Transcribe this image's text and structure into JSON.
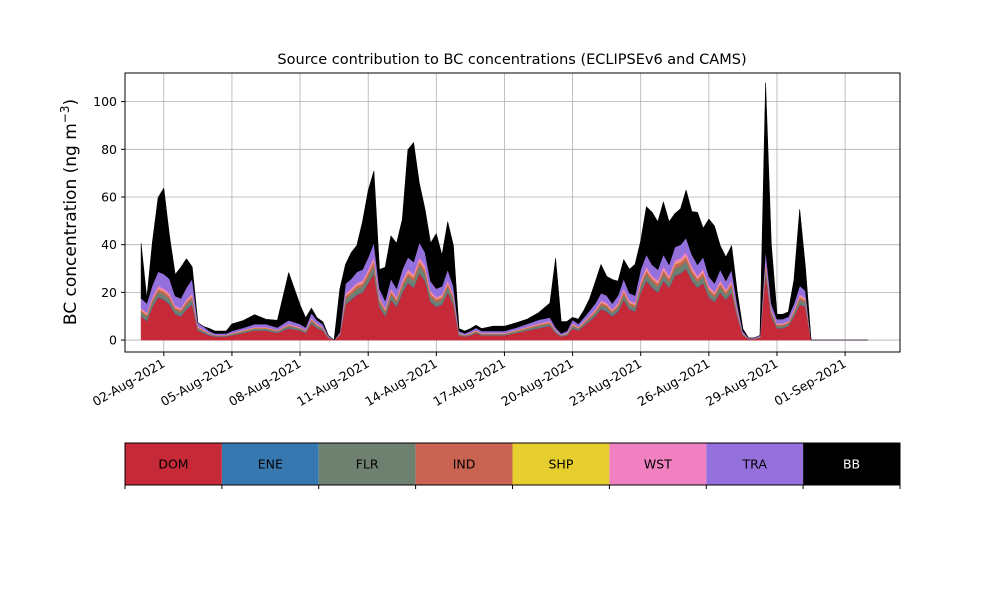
{
  "chart_data": {
    "type": "area",
    "stacked": true,
    "title": "Source contribution to BC concentrations (ECLIPSEv6 and CAMS)",
    "ylabel": "BC concentration (ng m",
    "ylabel_sup": "−3",
    "ylabel_close": ")",
    "xlabel": "",
    "ylim": [
      -5,
      112
    ],
    "xlim": [
      "2021-07-31T07:00",
      "2021-09-03T10:00"
    ],
    "yticks": [
      0,
      20,
      40,
      60,
      80,
      100
    ],
    "xticks": [
      {
        "date": "2021-08-02",
        "label": "02-Aug-2021"
      },
      {
        "date": "2021-08-05",
        "label": "05-Aug-2021"
      },
      {
        "date": "2021-08-08",
        "label": "08-Aug-2021"
      },
      {
        "date": "2021-08-11",
        "label": "11-Aug-2021"
      },
      {
        "date": "2021-08-14",
        "label": "14-Aug-2021"
      },
      {
        "date": "2021-08-17",
        "label": "17-Aug-2021"
      },
      {
        "date": "2021-08-20",
        "label": "20-Aug-2021"
      },
      {
        "date": "2021-08-23",
        "label": "23-Aug-2021"
      },
      {
        "date": "2021-08-26",
        "label": "26-Aug-2021"
      },
      {
        "date": "2021-08-29",
        "label": "29-Aug-2021"
      },
      {
        "date": "2021-09-01",
        "label": "01-Sep-2021"
      }
    ],
    "grid": true,
    "legend_position": "bottom colorbar",
    "x": [
      "2021-08-01T00:00",
      "2021-08-01T06:00",
      "2021-08-01T12:00",
      "2021-08-01T18:00",
      "2021-08-02T00:00",
      "2021-08-02T06:00",
      "2021-08-02T12:00",
      "2021-08-02T18:00",
      "2021-08-03T00:00",
      "2021-08-03T06:00",
      "2021-08-03T12:00",
      "2021-08-03T18:00",
      "2021-08-04T00:00",
      "2021-08-04T06:00",
      "2021-08-04T12:00",
      "2021-08-04T18:00",
      "2021-08-05T00:00",
      "2021-08-05T12:00",
      "2021-08-06T00:00",
      "2021-08-06T12:00",
      "2021-08-07T00:00",
      "2021-08-07T12:00",
      "2021-08-08T00:00",
      "2021-08-08T06:00",
      "2021-08-08T12:00",
      "2021-08-08T18:00",
      "2021-08-09T00:00",
      "2021-08-09T06:00",
      "2021-08-09T12:00",
      "2021-08-09T18:00",
      "2021-08-10T00:00",
      "2021-08-10T06:00",
      "2021-08-10T12:00",
      "2021-08-10T18:00",
      "2021-08-11T00:00",
      "2021-08-11T06:00",
      "2021-08-11T12:00",
      "2021-08-11T18:00",
      "2021-08-12T00:00",
      "2021-08-12T06:00",
      "2021-08-12T12:00",
      "2021-08-12T18:00",
      "2021-08-13T00:00",
      "2021-08-13T06:00",
      "2021-08-13T12:00",
      "2021-08-13T18:00",
      "2021-08-14T00:00",
      "2021-08-14T06:00",
      "2021-08-14T12:00",
      "2021-08-14T18:00",
      "2021-08-15T00:00",
      "2021-08-15T06:00",
      "2021-08-15T12:00",
      "2021-08-15T18:00",
      "2021-08-16T00:00",
      "2021-08-16T12:00",
      "2021-08-17T00:00",
      "2021-08-17T12:00",
      "2021-08-18T00:00",
      "2021-08-18T12:00",
      "2021-08-19T00:00",
      "2021-08-19T06:00",
      "2021-08-19T12:00",
      "2021-08-19T18:00",
      "2021-08-20T00:00",
      "2021-08-20T06:00",
      "2021-08-20T12:00",
      "2021-08-20T18:00",
      "2021-08-21T00:00",
      "2021-08-21T06:00",
      "2021-08-21T12:00",
      "2021-08-21T18:00",
      "2021-08-22T00:00",
      "2021-08-22T06:00",
      "2021-08-22T12:00",
      "2021-08-22T18:00",
      "2021-08-23T00:00",
      "2021-08-23T06:00",
      "2021-08-23T12:00",
      "2021-08-23T18:00",
      "2021-08-24T00:00",
      "2021-08-24T06:00",
      "2021-08-24T12:00",
      "2021-08-24T18:00",
      "2021-08-25T00:00",
      "2021-08-25T06:00",
      "2021-08-25T12:00",
      "2021-08-25T18:00",
      "2021-08-26T00:00",
      "2021-08-26T06:00",
      "2021-08-26T12:00",
      "2021-08-26T18:00",
      "2021-08-27T00:00",
      "2021-08-27T06:00",
      "2021-08-27T12:00",
      "2021-08-27T18:00",
      "2021-08-28T00:00",
      "2021-08-28T06:00",
      "2021-08-28T12:00",
      "2021-08-28T18:00",
      "2021-08-29T00:00",
      "2021-08-29T06:00",
      "2021-08-29T12:00",
      "2021-08-29T18:00",
      "2021-08-30T00:00",
      "2021-08-30T06:00",
      "2021-08-30T12:00",
      "2021-08-30T18:00",
      "2021-08-31T00:00",
      "2021-08-31T06:00",
      "2021-08-31T12:00",
      "2021-08-31T18:00",
      "2021-09-01T00:00",
      "2021-09-01T06:00",
      "2021-09-01T12:00",
      "2021-09-01T18:00",
      "2021-09-02T00:00"
    ],
    "series": [
      {
        "name": "DOM",
        "color": "#c62a39",
        "values": [
          10,
          8,
          14,
          18,
          17,
          15,
          11,
          10,
          13,
          15,
          4,
          3,
          2,
          1.5,
          1.5,
          1.5,
          2,
          3,
          4,
          4,
          3,
          5,
          4,
          3,
          7,
          5,
          4,
          1,
          0,
          2,
          15,
          17,
          19,
          20,
          24,
          28,
          14,
          10,
          17,
          14,
          20,
          24,
          22,
          28,
          25,
          16,
          14,
          15,
          20,
          15,
          2,
          1.5,
          2,
          3,
          2,
          2,
          2,
          3,
          4,
          5,
          6,
          3,
          1.5,
          2,
          5,
          4,
          6,
          8,
          10,
          13,
          12,
          10,
          12,
          17,
          13,
          12,
          20,
          25,
          22,
          20,
          25,
          22,
          27,
          28,
          30,
          25,
          22,
          24,
          18,
          16,
          20,
          17,
          20,
          10,
          2,
          0.5,
          0.5,
          1,
          28,
          10,
          5,
          5,
          6,
          10,
          15,
          14,
          0,
          0,
          0,
          0,
          0,
          0,
          0,
          0,
          0,
          0,
          0
        ]
      },
      {
        "name": "ENE",
        "color": "#3878b0",
        "values": [
          0.3,
          0.3,
          0.3,
          0.3,
          0.3,
          0.3,
          0.3,
          0.3,
          0.3,
          0.3,
          0.2,
          0.2,
          0.2,
          0.1,
          0.1,
          0.1,
          0.1,
          0.1,
          0.2,
          0.2,
          0.2,
          0.2,
          0.2,
          0.2,
          0.2,
          0.2,
          0.2,
          0.1,
          0,
          0.1,
          0.3,
          0.3,
          0.3,
          0.3,
          0.3,
          0.3,
          0.3,
          0.3,
          0.3,
          0.3,
          0.3,
          0.3,
          0.3,
          0.3,
          0.3,
          0.3,
          0.3,
          0.3,
          0.3,
          0.3,
          0.1,
          0.1,
          0.1,
          0.1,
          0.1,
          0.1,
          0.1,
          0.1,
          0.2,
          0.2,
          0.2,
          0.2,
          0.1,
          0.1,
          0.2,
          0.2,
          0.2,
          0.2,
          0.3,
          0.3,
          0.3,
          0.3,
          0.3,
          0.3,
          0.3,
          0.3,
          0.3,
          0.3,
          0.3,
          0.3,
          0.3,
          0.3,
          0.3,
          0.3,
          0.3,
          0.3,
          0.3,
          0.3,
          0.3,
          0.3,
          0.3,
          0.3,
          0.3,
          0.2,
          0.1,
          0,
          0,
          0.1,
          0.3,
          0.2,
          0.2,
          0.2,
          0.2,
          0.3,
          0.3,
          0.3,
          0,
          0,
          0,
          0,
          0,
          0,
          0,
          0,
          0,
          0,
          0
        ]
      },
      {
        "name": "FLR",
        "color": "#6e8170",
        "values": [
          1.5,
          1.5,
          1.8,
          2,
          2,
          2,
          1.5,
          1.5,
          1.8,
          2,
          0.8,
          0.6,
          0.4,
          0.3,
          0.3,
          0.3,
          0.4,
          0.5,
          0.6,
          0.6,
          0.5,
          0.8,
          0.6,
          0.5,
          1,
          0.8,
          0.6,
          0.2,
          0,
          0.3,
          2,
          2,
          2.2,
          2.2,
          2.5,
          3,
          1.8,
          1.5,
          2,
          1.8,
          2.2,
          2.5,
          2.5,
          3,
          2.8,
          2,
          1.8,
          1.8,
          2.2,
          1.8,
          0.4,
          0.3,
          0.4,
          0.5,
          0.4,
          0.4,
          0.4,
          0.5,
          0.6,
          0.8,
          0.8,
          0.5,
          0.3,
          0.4,
          0.8,
          0.6,
          0.8,
          1,
          1.2,
          1.5,
          1.5,
          1.2,
          1.5,
          2,
          1.5,
          1.5,
          2.2,
          2.5,
          2.2,
          2.2,
          2.5,
          2.2,
          2.8,
          2.8,
          3,
          2.5,
          2.2,
          2.5,
          2,
          1.8,
          2.2,
          1.8,
          2.2,
          1.2,
          0.4,
          0.1,
          0.1,
          0.2,
          2.5,
          1.2,
          0.8,
          0.8,
          0.8,
          1.2,
          1.8,
          1.5,
          0,
          0,
          0,
          0,
          0,
          0,
          0,
          0,
          0,
          0,
          0
        ]
      },
      {
        "name": "IND",
        "color": "#c96452",
        "values": [
          0.8,
          0.8,
          1,
          1.2,
          1.2,
          1.2,
          0.8,
          0.8,
          1,
          1.2,
          0.4,
          0.3,
          0.2,
          0.2,
          0.2,
          0.2,
          0.2,
          0.3,
          0.3,
          0.3,
          0.3,
          0.4,
          0.3,
          0.3,
          0.6,
          0.4,
          0.3,
          0.1,
          0,
          0.2,
          1.2,
          1.2,
          1.3,
          1.3,
          1.5,
          1.8,
          1,
          0.8,
          1.2,
          1,
          1.3,
          1.5,
          1.5,
          1.8,
          1.6,
          1.2,
          1,
          1,
          1.3,
          1,
          0.2,
          0.2,
          0.2,
          0.3,
          0.2,
          0.2,
          0.2,
          0.3,
          0.4,
          0.5,
          0.5,
          0.3,
          0.2,
          0.2,
          0.5,
          0.4,
          0.5,
          0.6,
          0.7,
          0.9,
          0.9,
          0.7,
          0.9,
          1.2,
          0.9,
          0.9,
          1.3,
          1.5,
          1.3,
          1.3,
          1.5,
          1.3,
          1.7,
          1.7,
          1.8,
          1.5,
          1.3,
          1.5,
          1.2,
          1.1,
          1.3,
          1.1,
          1.3,
          0.7,
          0.2,
          0.1,
          0.1,
          0.1,
          1.5,
          0.7,
          0.5,
          0.5,
          0.5,
          0.7,
          1.1,
          0.9,
          0,
          0,
          0,
          0,
          0,
          0,
          0,
          0,
          0,
          0,
          0
        ]
      },
      {
        "name": "SHP",
        "color": "#e6ce2e",
        "values": [
          0.2,
          0.2,
          0.2,
          0.2,
          0.2,
          0.2,
          0.2,
          0.2,
          0.2,
          0.2,
          0.1,
          0.1,
          0.1,
          0,
          0,
          0,
          0.1,
          0.1,
          0.1,
          0.1,
          0.1,
          0.1,
          0.1,
          0.1,
          0.1,
          0.1,
          0.1,
          0,
          0,
          0,
          0.2,
          0.2,
          0.2,
          0.2,
          0.2,
          0.3,
          0.2,
          0.2,
          0.2,
          0.2,
          0.2,
          0.3,
          0.3,
          0.3,
          0.3,
          0.2,
          0.2,
          0.2,
          0.2,
          0.2,
          0.1,
          0,
          0.1,
          0.1,
          0.1,
          0.1,
          0.1,
          0.1,
          0.1,
          0.1,
          0.1,
          0.1,
          0,
          0.1,
          0.1,
          0.1,
          0.1,
          0.1,
          0.1,
          0.2,
          0.2,
          0.1,
          0.2,
          0.2,
          0.2,
          0.2,
          0.2,
          0.3,
          0.2,
          0.2,
          0.3,
          0.2,
          0.3,
          0.3,
          0.3,
          0.3,
          0.2,
          0.3,
          0.2,
          0.2,
          0.2,
          0.2,
          0.2,
          0.1,
          0,
          0,
          0,
          0,
          0.3,
          0.1,
          0.1,
          0.1,
          0.1,
          0.1,
          0.2,
          0.2,
          0,
          0,
          0,
          0,
          0,
          0,
          0,
          0,
          0,
          0,
          0
        ]
      },
      {
        "name": "WST",
        "color": "#f080bf",
        "values": [
          0.7,
          0.7,
          0.8,
          1,
          1,
          1,
          0.7,
          0.7,
          0.8,
          1,
          0.3,
          0.3,
          0.2,
          0.1,
          0.1,
          0.1,
          0.2,
          0.2,
          0.3,
          0.3,
          0.2,
          0.3,
          0.3,
          0.2,
          0.5,
          0.3,
          0.3,
          0.1,
          0,
          0.1,
          1,
          1,
          1.1,
          1.1,
          1.2,
          1.5,
          0.8,
          0.7,
          1,
          0.8,
          1.1,
          1.2,
          1.2,
          1.5,
          1.4,
          1,
          0.8,
          0.8,
          1.1,
          0.8,
          0.2,
          0.1,
          0.2,
          0.2,
          0.2,
          0.2,
          0.2,
          0.2,
          0.3,
          0.4,
          0.4,
          0.2,
          0.1,
          0.2,
          0.4,
          0.3,
          0.4,
          0.5,
          0.6,
          0.8,
          0.8,
          0.6,
          0.8,
          1,
          0.8,
          0.8,
          1.1,
          1.3,
          1.1,
          1.1,
          1.3,
          1.1,
          1.4,
          1.4,
          1.5,
          1.3,
          1.1,
          1.3,
          1,
          0.9,
          1.1,
          0.9,
          1.1,
          0.6,
          0.2,
          0,
          0,
          0.1,
          1.3,
          0.6,
          0.4,
          0.4,
          0.4,
          0.6,
          0.9,
          0.8,
          0,
          0,
          0,
          0,
          0,
          0,
          0,
          0,
          0,
          0,
          0
        ]
      },
      {
        "name": "TRA",
        "color": "#9370db",
        "values": [
          4,
          4,
          5,
          6,
          6,
          6,
          4,
          4,
          5,
          6,
          1.5,
          1.2,
          0.8,
          0.6,
          0.6,
          0.6,
          0.8,
          1,
          1.2,
          1.2,
          1,
          1.5,
          1.2,
          1,
          2,
          1.5,
          1.2,
          0.4,
          0,
          0.6,
          4,
          4,
          4.5,
          4.5,
          5,
          6,
          3.5,
          3,
          4,
          3.5,
          4.5,
          5,
          5,
          6,
          5.5,
          4,
          3.5,
          3.5,
          4.5,
          3.5,
          0.8,
          0.6,
          0.8,
          1,
          0.8,
          0.8,
          0.8,
          1,
          1.2,
          1.5,
          1.5,
          1,
          0.6,
          0.8,
          1.5,
          1.2,
          1.5,
          2,
          2.5,
          3,
          3,
          2.5,
          3,
          4,
          3,
          3,
          4.5,
          5,
          4.5,
          4.5,
          5,
          4.5,
          5.5,
          5.5,
          6,
          5,
          4.5,
          5,
          4,
          3.5,
          4.5,
          3.5,
          4.5,
          2.5,
          0.8,
          0.2,
          0.2,
          0.4,
          4,
          2.5,
          1.8,
          1.8,
          1.8,
          2.5,
          3.5,
          3,
          0,
          0,
          0,
          0,
          0,
          0,
          0,
          0,
          0,
          0,
          0
        ]
      },
      {
        "name": "BB",
        "color": "#000000",
        "values": [
          23,
          2,
          18,
          31,
          36,
          18,
          9,
          13,
          12,
          5,
          0,
          0,
          1,
          1,
          1,
          1,
          3,
          3,
          4,
          2,
          3,
          20,
          8,
          4,
          2,
          1,
          1,
          0,
          0,
          18,
          8,
          11,
          11,
          20,
          28,
          30,
          8,
          14,
          18,
          19,
          21,
          45,
          50,
          25,
          18,
          16,
          23,
          13,
          20,
          17,
          1,
          1,
          1,
          1,
          1,
          2,
          2,
          2,
          2,
          3,
          6,
          29,
          5,
          4,
          1,
          2,
          3,
          5,
          9,
          12,
          8,
          10,
          6,
          8,
          10,
          13,
          12,
          20,
          22,
          20,
          22,
          18,
          14,
          15,
          20,
          18,
          22,
          12,
          24,
          24,
          10,
          10,
          10,
          5,
          1,
          0,
          0,
          0,
          70,
          25,
          2,
          2,
          2,
          10,
          32,
          10,
          0,
          0,
          0,
          0,
          0,
          0,
          0,
          0,
          0,
          0,
          0
        ]
      }
    ]
  }
}
